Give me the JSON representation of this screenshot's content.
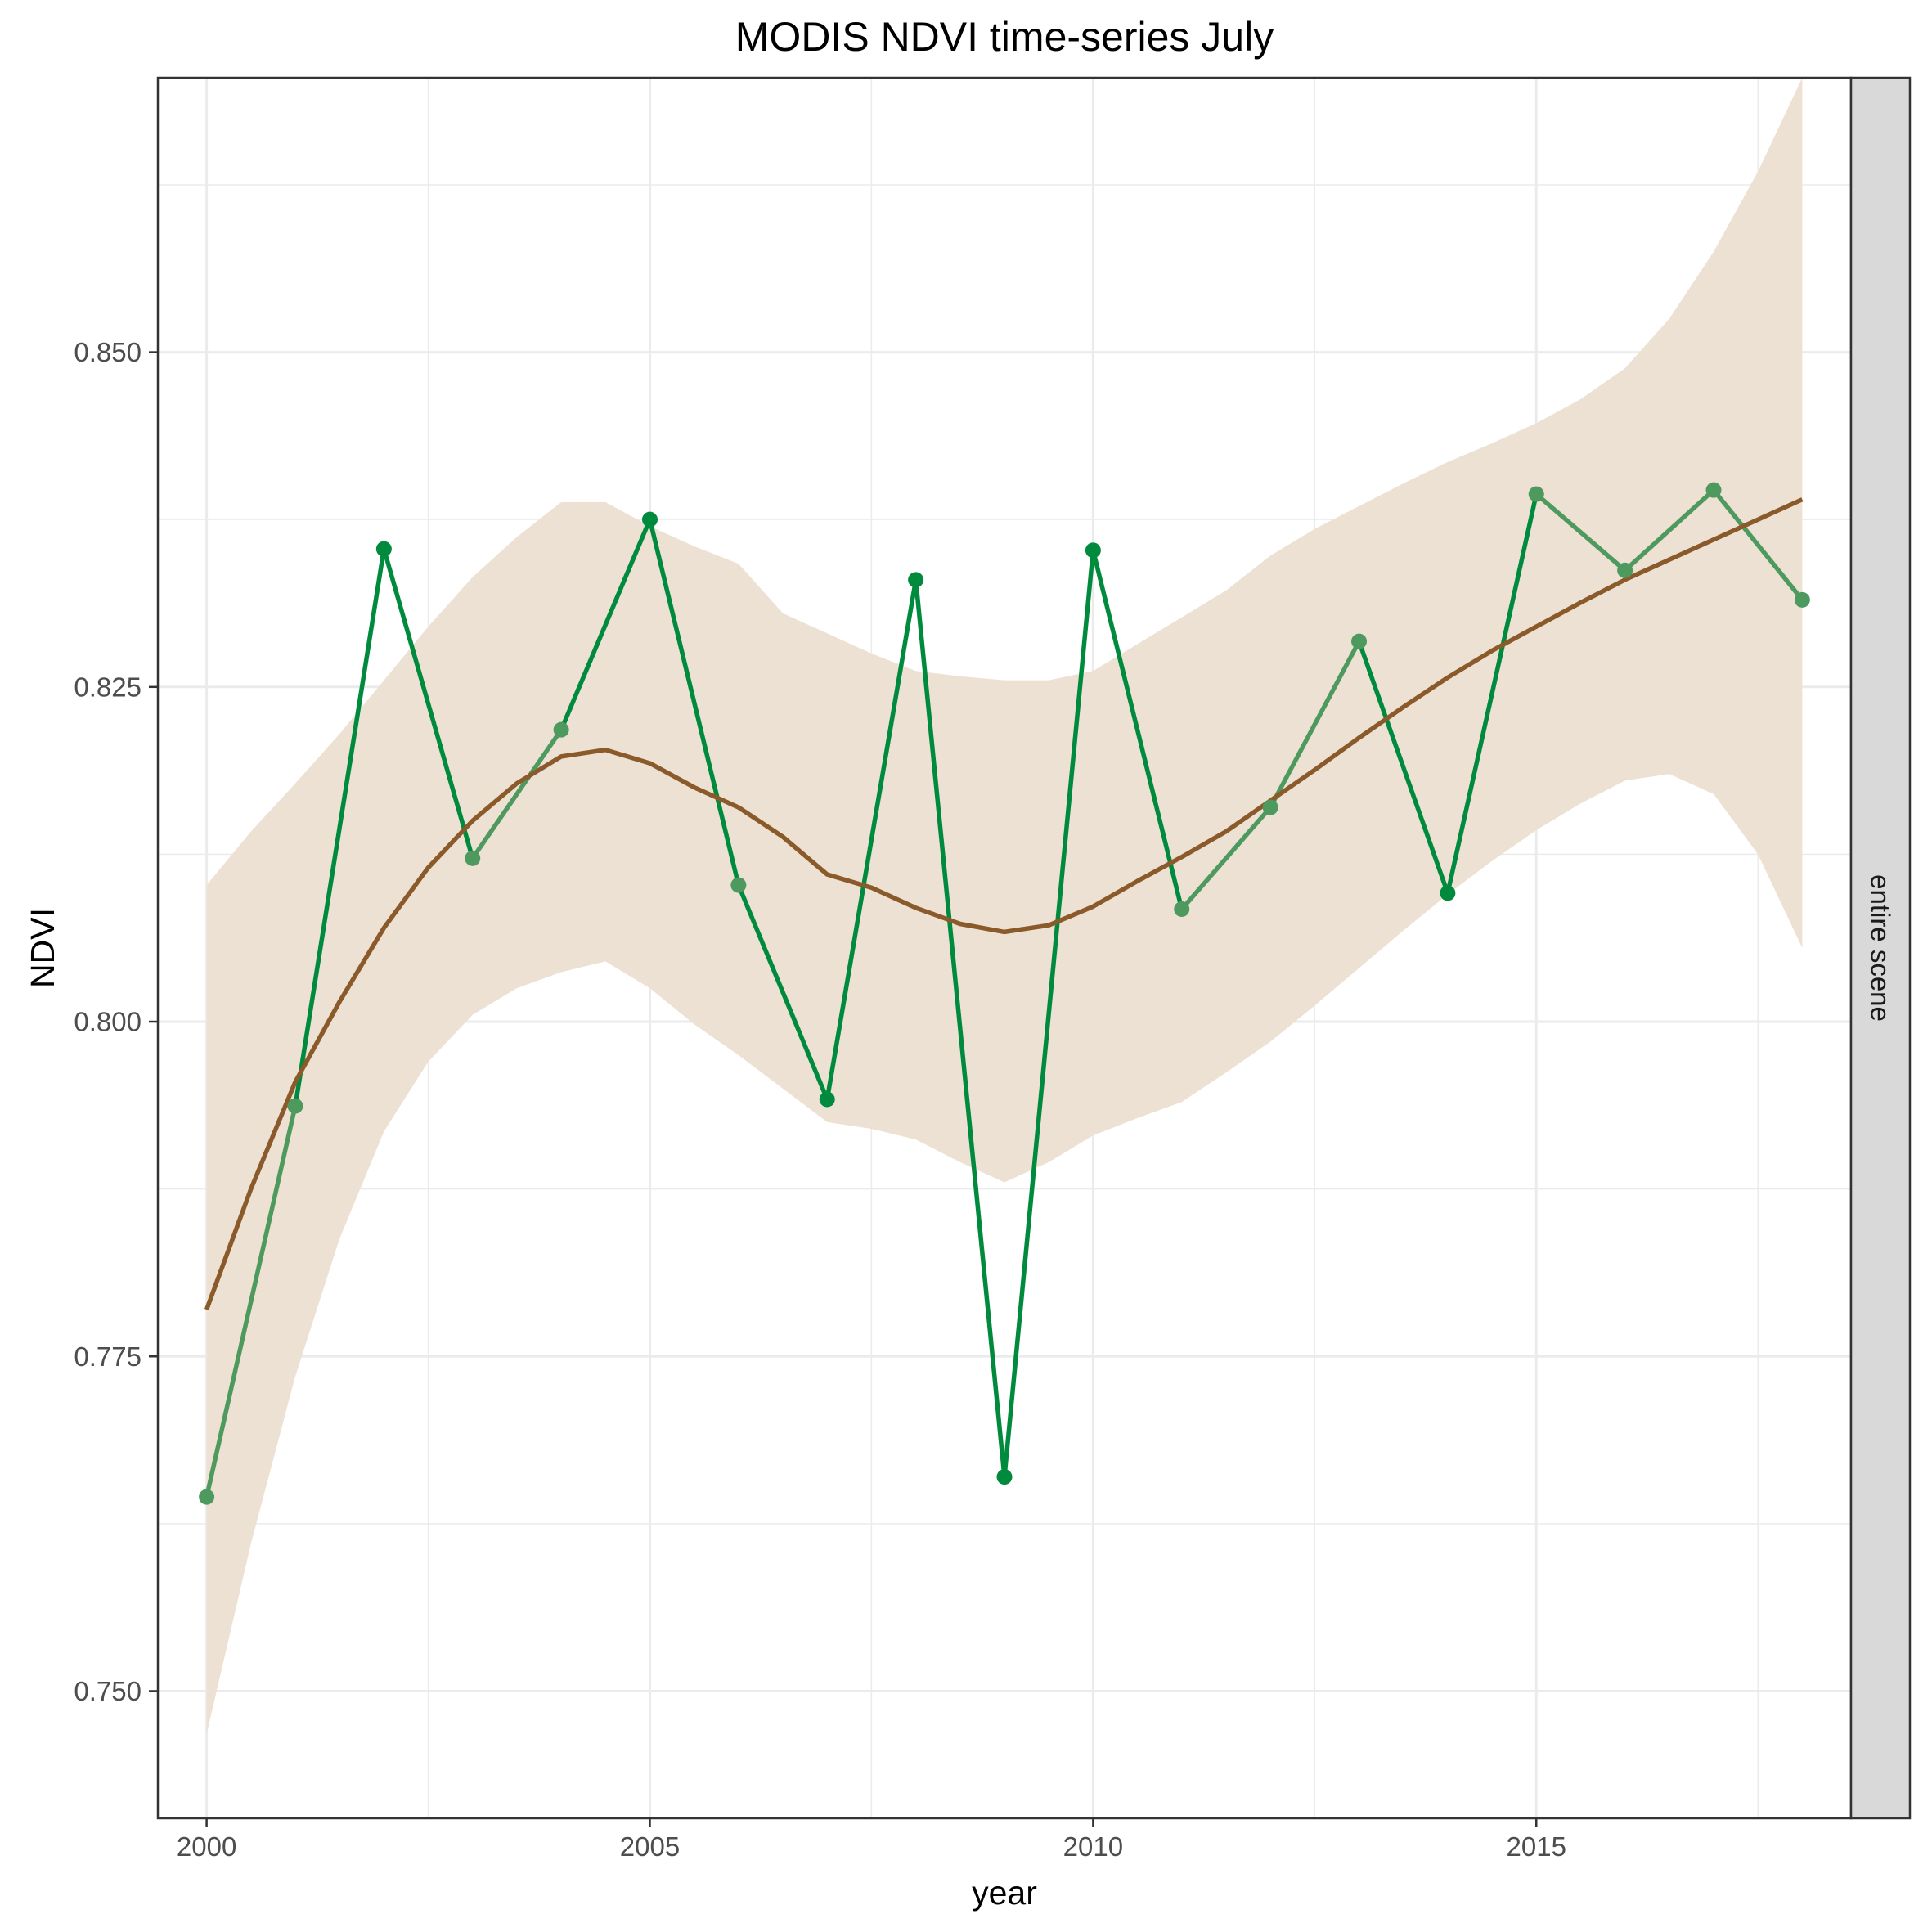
{
  "chart_data": {
    "type": "line",
    "title": "MODIS NDVI time-series July",
    "xlabel": "year",
    "ylabel": "NDVI",
    "facet_label": "entire scene",
    "xlim": [
      1999.45,
      2018.55
    ],
    "ylim": [
      0.7405,
      0.8705
    ],
    "x_ticks": [
      2000,
      2005,
      2010,
      2015
    ],
    "x_tick_labels": [
      "2000",
      "2005",
      "2010",
      "2015"
    ],
    "y_ticks": [
      0.75,
      0.775,
      0.8,
      0.825,
      0.85
    ],
    "y_tick_labels": [
      "0.750",
      "0.775",
      "0.800",
      "0.825",
      "0.850"
    ],
    "grid": true,
    "colors": {
      "series_low_trend": "#4e9a5e",
      "series_high_deviation": "#008a3e",
      "smooth_line": "#8b5a2b",
      "ribbon": "#ede1d3",
      "panel_border": "#333333",
      "grid": "#ebebeb",
      "strip_fill": "#d9d9d9"
    },
    "series": [
      {
        "x": [
          2000,
          2001,
          2002,
          2003,
          2004,
          2005,
          2006,
          2007,
          2008,
          2009,
          2010,
          2011,
          2012,
          2013,
          2014,
          2015,
          2016,
          2017,
          2018
        ],
        "values": [
          0.7645,
          0.7937,
          0.8353,
          0.8122,
          0.8218,
          0.8375,
          0.8102,
          0.7942,
          0.833,
          0.766,
          0.8352,
          0.8084,
          0.816,
          0.8284,
          0.8096,
          0.8394,
          0.8337,
          0.8397,
          0.8315
        ]
      }
    ],
    "smooth": {
      "x": [
        2000,
        2000.5,
        2001,
        2001.5,
        2002,
        2002.5,
        2003,
        2003.5,
        2004,
        2004.5,
        2005,
        2005.5,
        2006,
        2006.5,
        2007,
        2007.5,
        2008,
        2008.5,
        2009,
        2009.5,
        2010,
        2010.5,
        2011,
        2011.5,
        2012,
        2012.5,
        2013,
        2013.5,
        2014,
        2014.5,
        2015,
        2015.5,
        2016,
        2016.5,
        2017,
        2017.5,
        2018
      ],
      "y": [
        0.7785,
        0.7875,
        0.7955,
        0.8015,
        0.807,
        0.8115,
        0.815,
        0.8178,
        0.8198,
        0.8203,
        0.8193,
        0.8175,
        0.816,
        0.8138,
        0.811,
        0.81,
        0.8085,
        0.8073,
        0.8067,
        0.8072,
        0.8086,
        0.8105,
        0.8123,
        0.8142,
        0.8165,
        0.8188,
        0.8212,
        0.8235,
        0.8257,
        0.8277,
        0.8295,
        0.8313,
        0.833,
        0.8345,
        0.836,
        0.8375,
        0.839
      ],
      "lower": [
        0.7468,
        0.761,
        0.7735,
        0.7838,
        0.7918,
        0.797,
        0.8005,
        0.8025,
        0.8037,
        0.8045,
        0.8025,
        0.7998,
        0.7975,
        0.795,
        0.7925,
        0.792,
        0.7912,
        0.7895,
        0.788,
        0.7895,
        0.7915,
        0.7928,
        0.794,
        0.7962,
        0.7985,
        0.8012,
        0.804,
        0.8068,
        0.8095,
        0.812,
        0.8143,
        0.8163,
        0.818,
        0.8185,
        0.817,
        0.8125,
        0.8055
      ],
      "upper": [
        0.8102,
        0.8142,
        0.8178,
        0.8215,
        0.8255,
        0.8295,
        0.8332,
        0.8362,
        0.8388,
        0.8388,
        0.837,
        0.8355,
        0.8342,
        0.8305,
        0.829,
        0.8275,
        0.8262,
        0.8258,
        0.8255,
        0.8255,
        0.8262,
        0.8282,
        0.8302,
        0.8322,
        0.8348,
        0.8368,
        0.8385,
        0.8402,
        0.8418,
        0.8432,
        0.8447,
        0.8465,
        0.8488,
        0.8525,
        0.8575,
        0.8635,
        0.8705
      ]
    }
  }
}
